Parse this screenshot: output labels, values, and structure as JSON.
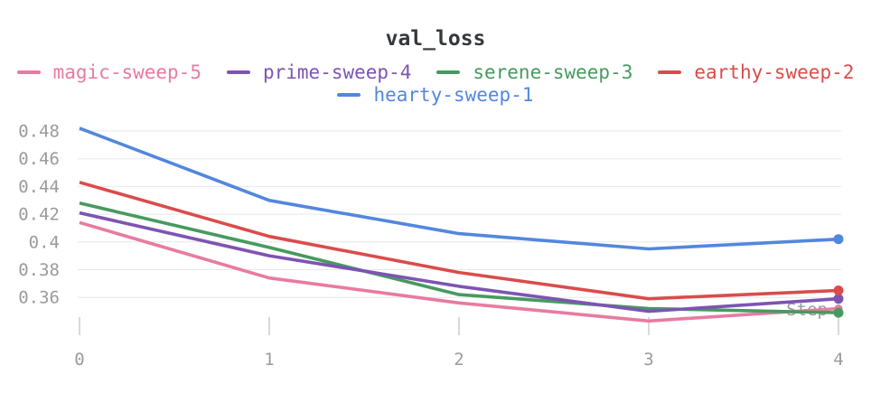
{
  "chart_data": {
    "type": "line",
    "title": "val_loss",
    "xlabel": "Step",
    "ylabel": "",
    "x": [
      0,
      1,
      2,
      3,
      4
    ],
    "x_ticks": [
      "0",
      "1",
      "2",
      "3",
      "4"
    ],
    "y_ticks": [
      "0.48",
      "0.46",
      "0.44",
      "0.42",
      "0.4",
      "0.38",
      "0.36"
    ],
    "ylim": [
      0.334,
      0.49
    ],
    "xlim": [
      0,
      4
    ],
    "grid": true,
    "legend_position": "top-center",
    "series": [
      {
        "name": "magic-sweep-5",
        "color": "#E87B9F",
        "values": [
          0.414,
          0.374,
          0.356,
          0.343,
          0.352
        ]
      },
      {
        "name": "prime-sweep-4",
        "color": "#7D54B2",
        "values": [
          0.421,
          0.39,
          0.368,
          0.35,
          0.359
        ]
      },
      {
        "name": "serene-sweep-3",
        "color": "#479A5F",
        "values": [
          0.428,
          0.396,
          0.362,
          0.352,
          0.349
        ]
      },
      {
        "name": "earthy-sweep-2",
        "color": "#DA4C4C",
        "values": [
          0.443,
          0.404,
          0.378,
          0.359,
          0.365
        ]
      },
      {
        "name": "hearty-sweep-1",
        "color": "#5387DD",
        "values": [
          0.482,
          0.43,
          0.406,
          0.395,
          0.402
        ]
      }
    ],
    "end_point_markers": true
  },
  "colors": {
    "title_text": "#33383c",
    "tick_text": "#9a9aa0",
    "axis_label_text": "#9a9aa0",
    "gridline": "#e7e7e7",
    "tick_mark": "#d9d9d9",
    "background": "#ffffff"
  }
}
